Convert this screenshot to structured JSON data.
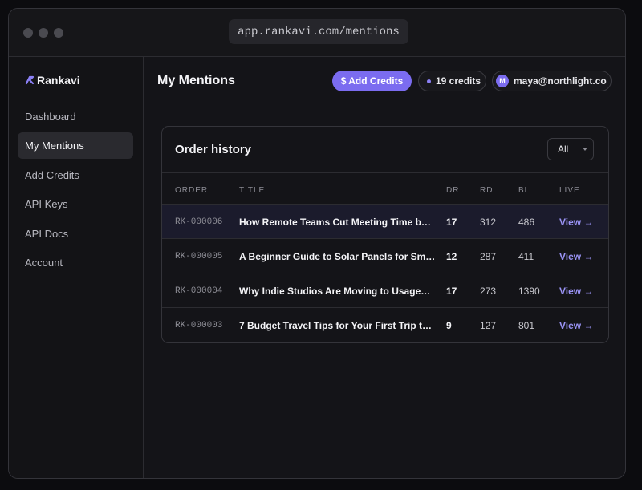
{
  "browser": {
    "url": "app.rankavi.com/mentions"
  },
  "sidebar": {
    "logo": "Rankavi",
    "nav": [
      "Dashboard",
      "My Mentions",
      "Add Credits",
      "API Keys",
      "API Docs",
      "Account"
    ]
  },
  "header": {
    "title": "My Mentions",
    "add_credits": "$ Add Credits",
    "credits": "19 credits",
    "avatar": "M",
    "user": "maya@northlight.co"
  },
  "card": {
    "title": "Order history",
    "filter": "All",
    "table": {
      "columns": [
        "ORDER",
        "TITLE",
        "DR",
        "RD",
        "BL",
        "LIVE"
      ],
      "rows": [
        [
          "RK-000006",
          "How Remote Teams Cut Meeting Time b…",
          17,
          312,
          486,
          "View →"
        ],
        [
          "RK-000005",
          "A Beginner Guide to Solar Panels for Sm…",
          12,
          287,
          411,
          "View →"
        ],
        [
          "RK-000004",
          "Why Indie Studios Are Moving to Usage…",
          17,
          273,
          1390,
          "View →"
        ],
        [
          "RK-000003",
          "7 Budget Travel Tips for Your First Trip t…",
          9,
          127,
          801,
          "View →"
        ]
      ]
    }
  }
}
